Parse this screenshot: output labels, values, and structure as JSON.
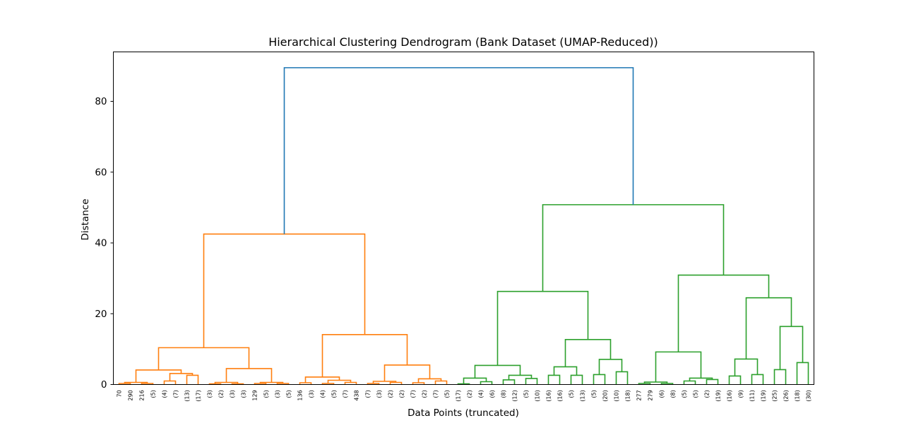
{
  "chart_data": {
    "type": "dendrogram",
    "title": "Hierarchical Clustering Dendrogram (Bank Dataset (UMAP-Reduced))",
    "xlabel": "Data Points (truncated)",
    "ylabel": "Distance",
    "ylim": [
      0,
      90
    ],
    "yticks": [
      0,
      20,
      40,
      60,
      80
    ],
    "grid": false,
    "colors": {
      "cluster_1": "#ff7f0e",
      "cluster_2": "#2ca02c",
      "root": "#1f77b4"
    },
    "leaf_labels": [
      "70",
      "290",
      "216",
      "(5)",
      "(4)",
      "(7)",
      "(13)",
      "(17)",
      "(3)",
      "(2)",
      "(3)",
      "(3)",
      "129",
      "(5)",
      "(3)",
      "(5)",
      "136",
      "(3)",
      "(4)",
      "(5)",
      "(7)",
      "438",
      "(7)",
      "(3)",
      "(2)",
      "(2)",
      "(7)",
      "(2)",
      "(7)",
      "(5)",
      "(17)",
      "(2)",
      "(4)",
      "(6)",
      "(8)",
      "(12)",
      "(5)",
      "(10)",
      "(16)",
      "(16)",
      "(5)",
      "(13)",
      "(5)",
      "(20)",
      "(10)",
      "(18)",
      "277",
      "279",
      "(6)",
      "(8)",
      "(5)",
      "(5)",
      "(2)",
      "(19)",
      "(16)",
      "(9)",
      "(11)",
      "(19)",
      "(25)",
      "(26)",
      "(18)",
      "(30)"
    ],
    "links": [
      {
        "left": 0,
        "right": 1,
        "height": 0.3,
        "color": "cluster_1"
      },
      {
        "left": 2,
        "right": 3,
        "height": 0.3,
        "color": "cluster_1"
      },
      {
        "left": "n0",
        "right": "n1",
        "height": 0.6,
        "color": "cluster_1"
      },
      {
        "left": 4,
        "right": 5,
        "height": 1.0,
        "color": "cluster_1"
      },
      {
        "left": 6,
        "right": 7,
        "height": 2.6,
        "color": "cluster_1"
      },
      {
        "left": "n3",
        "right": "n4",
        "height": 3.1,
        "color": "cluster_1"
      },
      {
        "left": "n2",
        "right": "n5",
        "height": 4.1,
        "color": "cluster_1"
      },
      {
        "left": 8,
        "right": 9,
        "height": 0.2,
        "color": "cluster_1"
      },
      {
        "left": 10,
        "right": 11,
        "height": 0.2,
        "color": "cluster_1"
      },
      {
        "left": "n7",
        "right": "n8",
        "height": 0.6,
        "color": "cluster_1"
      },
      {
        "left": 12,
        "right": 13,
        "height": 0.3,
        "color": "cluster_1"
      },
      {
        "left": 14,
        "right": 15,
        "height": 0.3,
        "color": "cluster_1"
      },
      {
        "left": "n10",
        "right": "n11",
        "height": 0.6,
        "color": "cluster_1"
      },
      {
        "left": "n9",
        "right": "n12",
        "height": 4.5,
        "color": "cluster_1"
      },
      {
        "left": "n6",
        "right": "n13",
        "height": 10.4,
        "color": "cluster_1"
      },
      {
        "left": 16,
        "right": 17,
        "height": 0.5,
        "color": "cluster_1"
      },
      {
        "left": 18,
        "right": 19,
        "height": 0.3,
        "color": "cluster_1"
      },
      {
        "left": 20,
        "right": 21,
        "height": 0.6,
        "color": "cluster_1"
      },
      {
        "left": "n16",
        "right": "n17",
        "height": 1.2,
        "color": "cluster_1"
      },
      {
        "left": "n15",
        "right": "n18",
        "height": 2.1,
        "color": "cluster_1"
      },
      {
        "left": 22,
        "right": 23,
        "height": 0.3,
        "color": "cluster_1"
      },
      {
        "left": 24,
        "right": 25,
        "height": 0.6,
        "color": "cluster_1"
      },
      {
        "left": "n20",
        "right": "n21",
        "height": 0.9,
        "color": "cluster_1"
      },
      {
        "left": 26,
        "right": 27,
        "height": 0.5,
        "color": "cluster_1"
      },
      {
        "left": 28,
        "right": 29,
        "height": 1.0,
        "color": "cluster_1"
      },
      {
        "left": "n23",
        "right": "n24",
        "height": 1.6,
        "color": "cluster_1"
      },
      {
        "left": "n22",
        "right": "n25",
        "height": 5.5,
        "color": "cluster_1"
      },
      {
        "left": "n19",
        "right": "n26",
        "height": 14.1,
        "color": "cluster_1"
      },
      {
        "left": "n14",
        "right": "n27",
        "height": 42.5,
        "color": "cluster_1"
      },
      {
        "left": 30,
        "right": 31,
        "height": 0.2,
        "color": "cluster_2"
      },
      {
        "left": 32,
        "right": 33,
        "height": 0.8,
        "color": "cluster_2"
      },
      {
        "left": "n29",
        "right": "n30",
        "height": 1.8,
        "color": "cluster_2"
      },
      {
        "left": 34,
        "right": 35,
        "height": 1.3,
        "color": "cluster_2"
      },
      {
        "left": 36,
        "right": 37,
        "height": 1.7,
        "color": "cluster_2"
      },
      {
        "left": "n32",
        "right": "n33",
        "height": 2.6,
        "color": "cluster_2"
      },
      {
        "left": "n31",
        "right": "n34",
        "height": 5.4,
        "color": "cluster_2"
      },
      {
        "left": 38,
        "right": 39,
        "height": 2.6,
        "color": "cluster_2"
      },
      {
        "left": 40,
        "right": 41,
        "height": 2.6,
        "color": "cluster_2"
      },
      {
        "left": "n36",
        "right": "n37",
        "height": 5.0,
        "color": "cluster_2"
      },
      {
        "left": 42,
        "right": 43,
        "height": 2.8,
        "color": "cluster_2"
      },
      {
        "left": 44,
        "right": 45,
        "height": 3.6,
        "color": "cluster_2"
      },
      {
        "left": "n39",
        "right": "n40",
        "height": 7.1,
        "color": "cluster_2"
      },
      {
        "left": "n38",
        "right": "n41",
        "height": 12.7,
        "color": "cluster_2"
      },
      {
        "left": "n35",
        "right": "n42",
        "height": 26.3,
        "color": "cluster_2"
      },
      {
        "left": 46,
        "right": 47,
        "height": 0.3,
        "color": "cluster_2"
      },
      {
        "left": 48,
        "right": 49,
        "height": 0.3,
        "color": "cluster_2"
      },
      {
        "left": "n44",
        "right": "n45",
        "height": 0.7,
        "color": "cluster_2"
      },
      {
        "left": 50,
        "right": 51,
        "height": 1.0,
        "color": "cluster_2"
      },
      {
        "left": 52,
        "right": 53,
        "height": 1.4,
        "color": "cluster_2"
      },
      {
        "left": "n47",
        "right": "n48",
        "height": 1.8,
        "color": "cluster_2"
      },
      {
        "left": "n46",
        "right": "n49",
        "height": 9.2,
        "color": "cluster_2"
      },
      {
        "left": 54,
        "right": 55,
        "height": 2.4,
        "color": "cluster_2"
      },
      {
        "left": 56,
        "right": 57,
        "height": 2.8,
        "color": "cluster_2"
      },
      {
        "left": "n51",
        "right": "n52",
        "height": 7.2,
        "color": "cluster_2"
      },
      {
        "left": 58,
        "right": 59,
        "height": 4.2,
        "color": "cluster_2"
      },
      {
        "left": 60,
        "right": 61,
        "height": 6.2,
        "color": "cluster_2"
      },
      {
        "left": "n54",
        "right": "n55",
        "height": 16.4,
        "color": "cluster_2"
      },
      {
        "left": "n53",
        "right": "n56",
        "height": 24.5,
        "color": "cluster_2"
      },
      {
        "left": "n50",
        "right": "n57",
        "height": 30.9,
        "color": "cluster_2"
      },
      {
        "left": "n43",
        "right": "n58",
        "height": 50.8,
        "color": "cluster_2"
      },
      {
        "left": "n28",
        "right": "n59",
        "height": 89.5,
        "color": "root"
      }
    ]
  }
}
